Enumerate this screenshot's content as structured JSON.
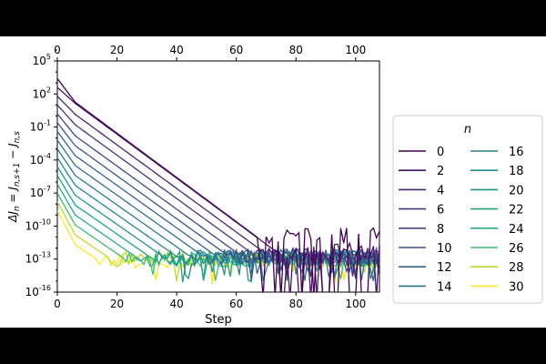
{
  "chart_data": {
    "type": "line",
    "xlabel": "Step",
    "ylabel": "ΔJ_n = J_{n,s+1} − J_{n,s}",
    "ylabel_parts": {
      "delta_j": "ΔJ",
      "sub_n": "n",
      "eq": " = J",
      "sub_ns1": "n,s+1",
      "minus": " − J",
      "sub_ns": "n,s"
    },
    "x_range": [
      0,
      108
    ],
    "x_ticks": [
      0,
      20,
      40,
      60,
      80,
      100
    ],
    "x_tick_labels": [
      "0",
      "20",
      "40",
      "60",
      "80",
      "100"
    ],
    "y_scale": "log",
    "y_range_exponent": [
      -16,
      5
    ],
    "y_ticks_exponent": [
      -16,
      -13,
      -10,
      -7,
      -4,
      -1,
      2,
      5
    ],
    "y_tick_base": "10",
    "y_tick_exponents": [
      "-16",
      "-13",
      "-10",
      "-7",
      "-4",
      "-1",
      "2",
      "5"
    ],
    "grid": false,
    "secondary_top_axis": true,
    "legend": {
      "title": "n",
      "placement": "right-outside",
      "columns": 2
    },
    "noise_floor_exponent": -12.8,
    "series": [
      {
        "name": "0",
        "color": "#440154",
        "start_log": 3.4,
        "knee_step": 6,
        "knee_log": 1.25,
        "slope": -0.201,
        "floor_log": -11.2,
        "noisy": true
      },
      {
        "name": "2",
        "color": "#471365",
        "start_log": 2.6,
        "knee_step": 6,
        "knee_log": 1.15,
        "slope": -0.2,
        "floor_log": -12.6,
        "noisy": true
      },
      {
        "name": "4",
        "color": "#482475",
        "start_log": 1.8,
        "knee_step": 6,
        "knee_log": 0.15,
        "slope": -0.198,
        "floor_log": -12.6,
        "noisy": false
      },
      {
        "name": "6",
        "color": "#453781",
        "start_log": 1.0,
        "knee_step": 6,
        "knee_log": -0.8,
        "slope": -0.197,
        "floor_log": -12.7,
        "noisy": false
      },
      {
        "name": "8",
        "color": "#3f4788",
        "start_log": 0.2,
        "knee_step": 6,
        "knee_log": -1.8,
        "slope": -0.196,
        "floor_log": -12.7,
        "noisy": false
      },
      {
        "name": "10",
        "color": "#39558c",
        "start_log": -0.6,
        "knee_step": 6,
        "knee_log": -2.7,
        "slope": -0.195,
        "floor_log": -12.8,
        "noisy": false
      },
      {
        "name": "12",
        "color": "#32648e",
        "start_log": -1.4,
        "knee_step": 6,
        "knee_log": -3.6,
        "slope": -0.193,
        "floor_log": -12.8,
        "noisy": false
      },
      {
        "name": "14",
        "color": "#2d718e",
        "start_log": -2.2,
        "knee_step": 6,
        "knee_log": -4.5,
        "slope": -0.192,
        "floor_log": -12.8,
        "noisy": false
      },
      {
        "name": "16",
        "color": "#287d8e",
        "start_log": -3.0,
        "knee_step": 6,
        "knee_log": -5.4,
        "slope": -0.191,
        "floor_log": -12.8,
        "noisy": false
      },
      {
        "name": "18",
        "color": "#238a8d",
        "start_log": -3.8,
        "knee_step": 6,
        "knee_log": -6.3,
        "slope": -0.19,
        "floor_log": -12.9,
        "noisy": false
      },
      {
        "name": "20",
        "color": "#1f968b",
        "start_log": -4.6,
        "knee_step": 6,
        "knee_log": -7.2,
        "slope": -0.189,
        "floor_log": -12.9,
        "noisy": false
      },
      {
        "name": "22",
        "color": "#20a386",
        "start_log": -5.4,
        "knee_step": 6,
        "knee_log": -8.1,
        "slope": -0.188,
        "floor_log": -12.9,
        "noisy": false
      },
      {
        "name": "24",
        "color": "#29af7f",
        "start_log": -6.2,
        "knee_step": 6,
        "knee_log": -9.0,
        "slope": -0.187,
        "floor_log": -13.0,
        "noisy": false
      },
      {
        "name": "26",
        "color": "#3dbc74",
        "start_log": -7.0,
        "knee_step": 6,
        "knee_log": -9.9,
        "slope": -0.186,
        "floor_log": -13.0,
        "noisy": false
      },
      {
        "name": "28",
        "color": "#b8de29",
        "start_log": -7.8,
        "knee_step": 6,
        "knee_log": -10.8,
        "slope": -0.185,
        "floor_log": -13.0,
        "noisy": false
      },
      {
        "name": "30",
        "color": "#fde725",
        "start_log": -8.6,
        "knee_step": 6,
        "knee_log": -11.7,
        "slope": -0.184,
        "floor_log": -13.1,
        "noisy": false
      }
    ]
  }
}
